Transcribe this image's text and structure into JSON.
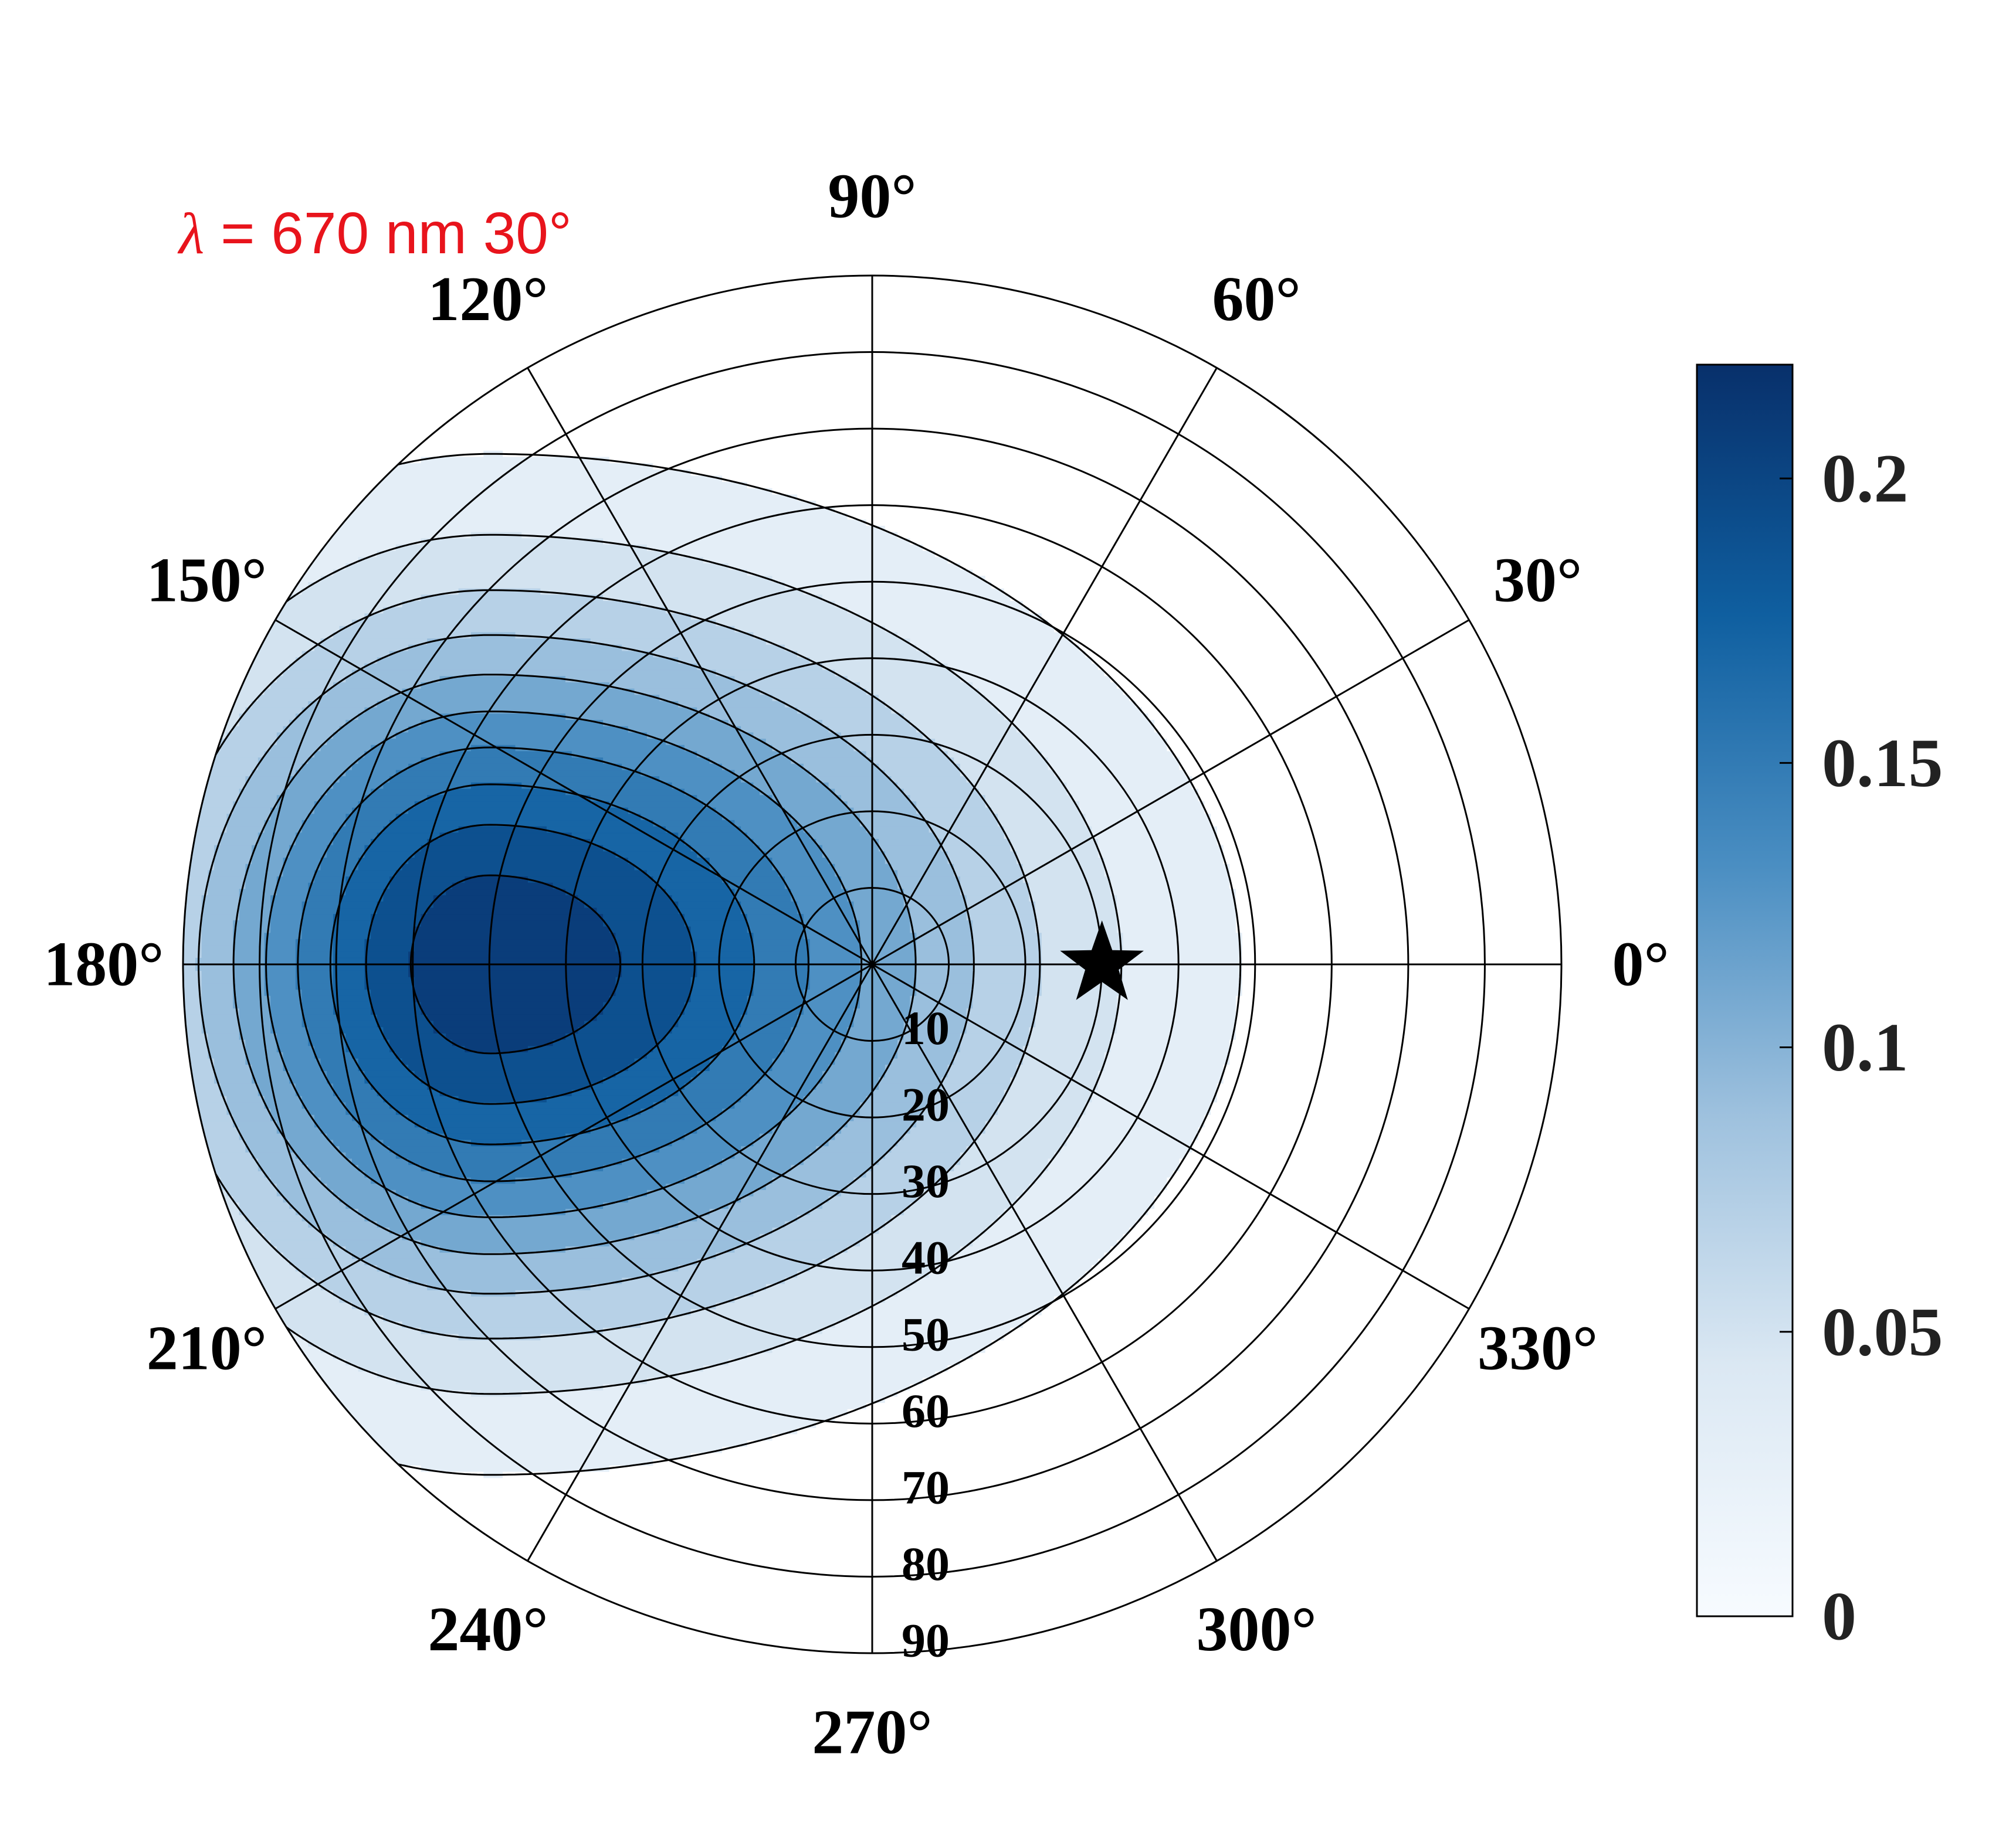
{
  "chart_data": {
    "type": "heatmap",
    "subtype": "polar-filled-contour",
    "title": {
      "symbol": "λ",
      "rest": " = 670 nm 30°"
    },
    "angular_ticks": [
      "0°",
      "30°",
      "60°",
      "90°",
      "120°",
      "150°",
      "180°",
      "210°",
      "240°",
      "270°",
      "300°",
      "330°"
    ],
    "angular_tick_values_deg": [
      0,
      30,
      60,
      90,
      120,
      150,
      180,
      210,
      240,
      270,
      300,
      330
    ],
    "radial_ticks": [
      "10",
      "20",
      "30",
      "40",
      "50",
      "60",
      "70",
      "80",
      "90"
    ],
    "radial_tick_values": [
      10,
      20,
      30,
      40,
      50,
      60,
      70,
      80,
      90
    ],
    "rlim": [
      0,
      90
    ],
    "grid": true,
    "colorbar": {
      "ticks": [
        "0",
        "0.05",
        "0.1",
        "0.15",
        "0.2"
      ],
      "tick_values": [
        0,
        0.05,
        0.1,
        0.15,
        0.2
      ],
      "range": [
        0,
        0.22
      ],
      "colors": [
        "#f7fbff",
        "#dbe8f3",
        "#9ec1de",
        "#4a8ec2",
        "#0f5fa0",
        "#08306b"
      ]
    },
    "contour_levels": [
      0.02,
      0.04,
      0.06,
      0.08,
      0.1,
      0.12,
      0.14,
      0.16,
      0.18,
      0.2
    ],
    "peak": {
      "azimuth_deg": 180,
      "zenith_deg": 50,
      "value": 0.215
    },
    "marker": {
      "symbol": "star",
      "azimuth_deg": 0,
      "zenith_deg": 30
    },
    "colors": {
      "title": "#e8141c",
      "ink": "#000000"
    }
  }
}
